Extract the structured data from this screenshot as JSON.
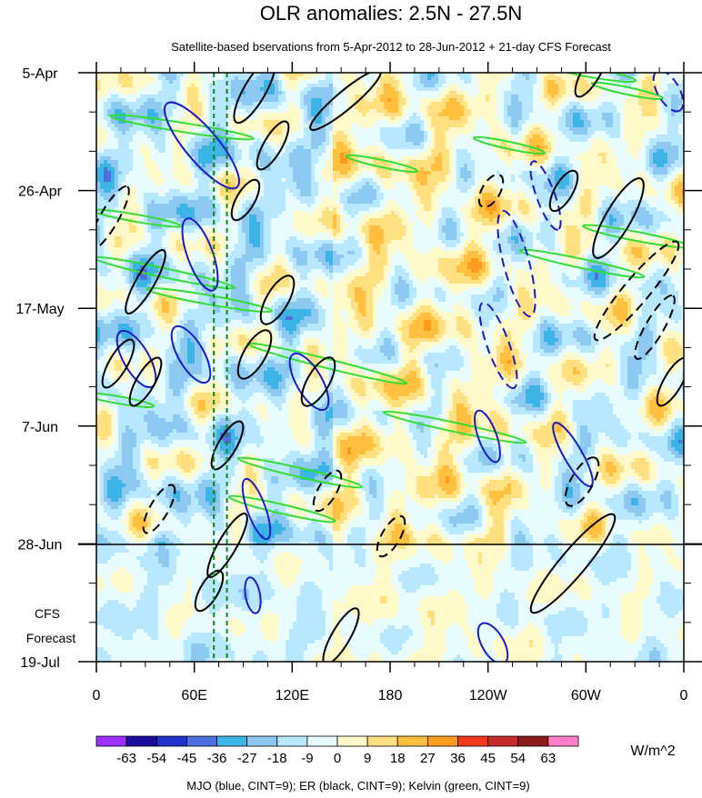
{
  "chart_data": {
    "type": "heatmap",
    "title": "OLR anomalies: 2.5N - 27.5N",
    "subtitle": "Satellite-based bservations from 5-Apr-2012 to 28-Jun-2012 + 21-day CFS Forecast",
    "x_axis": {
      "tick_labels": [
        "0",
        "60E",
        "120E",
        "180",
        "120W",
        "60W",
        "0"
      ],
      "tick_values_deg_east": [
        0,
        60,
        120,
        180,
        240,
        300,
        360
      ],
      "range": [
        0,
        360
      ]
    },
    "y_axis": {
      "tick_labels": [
        "5-Apr",
        "26-Apr",
        "17-May",
        "7-Jun",
        "28-Jun",
        "19-Jul"
      ],
      "range": [
        "2012-04-05",
        "2012-07-19"
      ],
      "reversed": true,
      "forecast_label_lines": [
        "CFS",
        "Forecast"
      ],
      "forecast_start": "2012-06-28"
    },
    "colorbar": {
      "unit": "W/m^2",
      "levels": [
        "-63",
        "-54",
        "-45",
        "-36",
        "-27",
        "-18",
        "-9",
        "0",
        "9",
        "18",
        "27",
        "36",
        "45",
        "54",
        "63"
      ],
      "colors": [
        "#9b30ff",
        "#1c0d9e",
        "#2233cc",
        "#4d6fe0",
        "#3cb4e6",
        "#8cc8f0",
        "#b8e8ff",
        "#e8fbff",
        "#fff8c8",
        "#ffe080",
        "#ffc040",
        "#ff9c1e",
        "#ee3a1a",
        "#c62a2a",
        "#8c1c1c",
        "#ff80c8"
      ]
    },
    "dashed_longitudes_deg_east": [
      72,
      80
    ],
    "contour_legend": "MJO (blue, CINT=9); ER (black, CINT=9); Kelvin (green, CINT=9)",
    "contour_colors": {
      "MJO": "#1a1acc",
      "ER": "#000000",
      "Kelvin": "#33dd33"
    },
    "grid": false
  }
}
